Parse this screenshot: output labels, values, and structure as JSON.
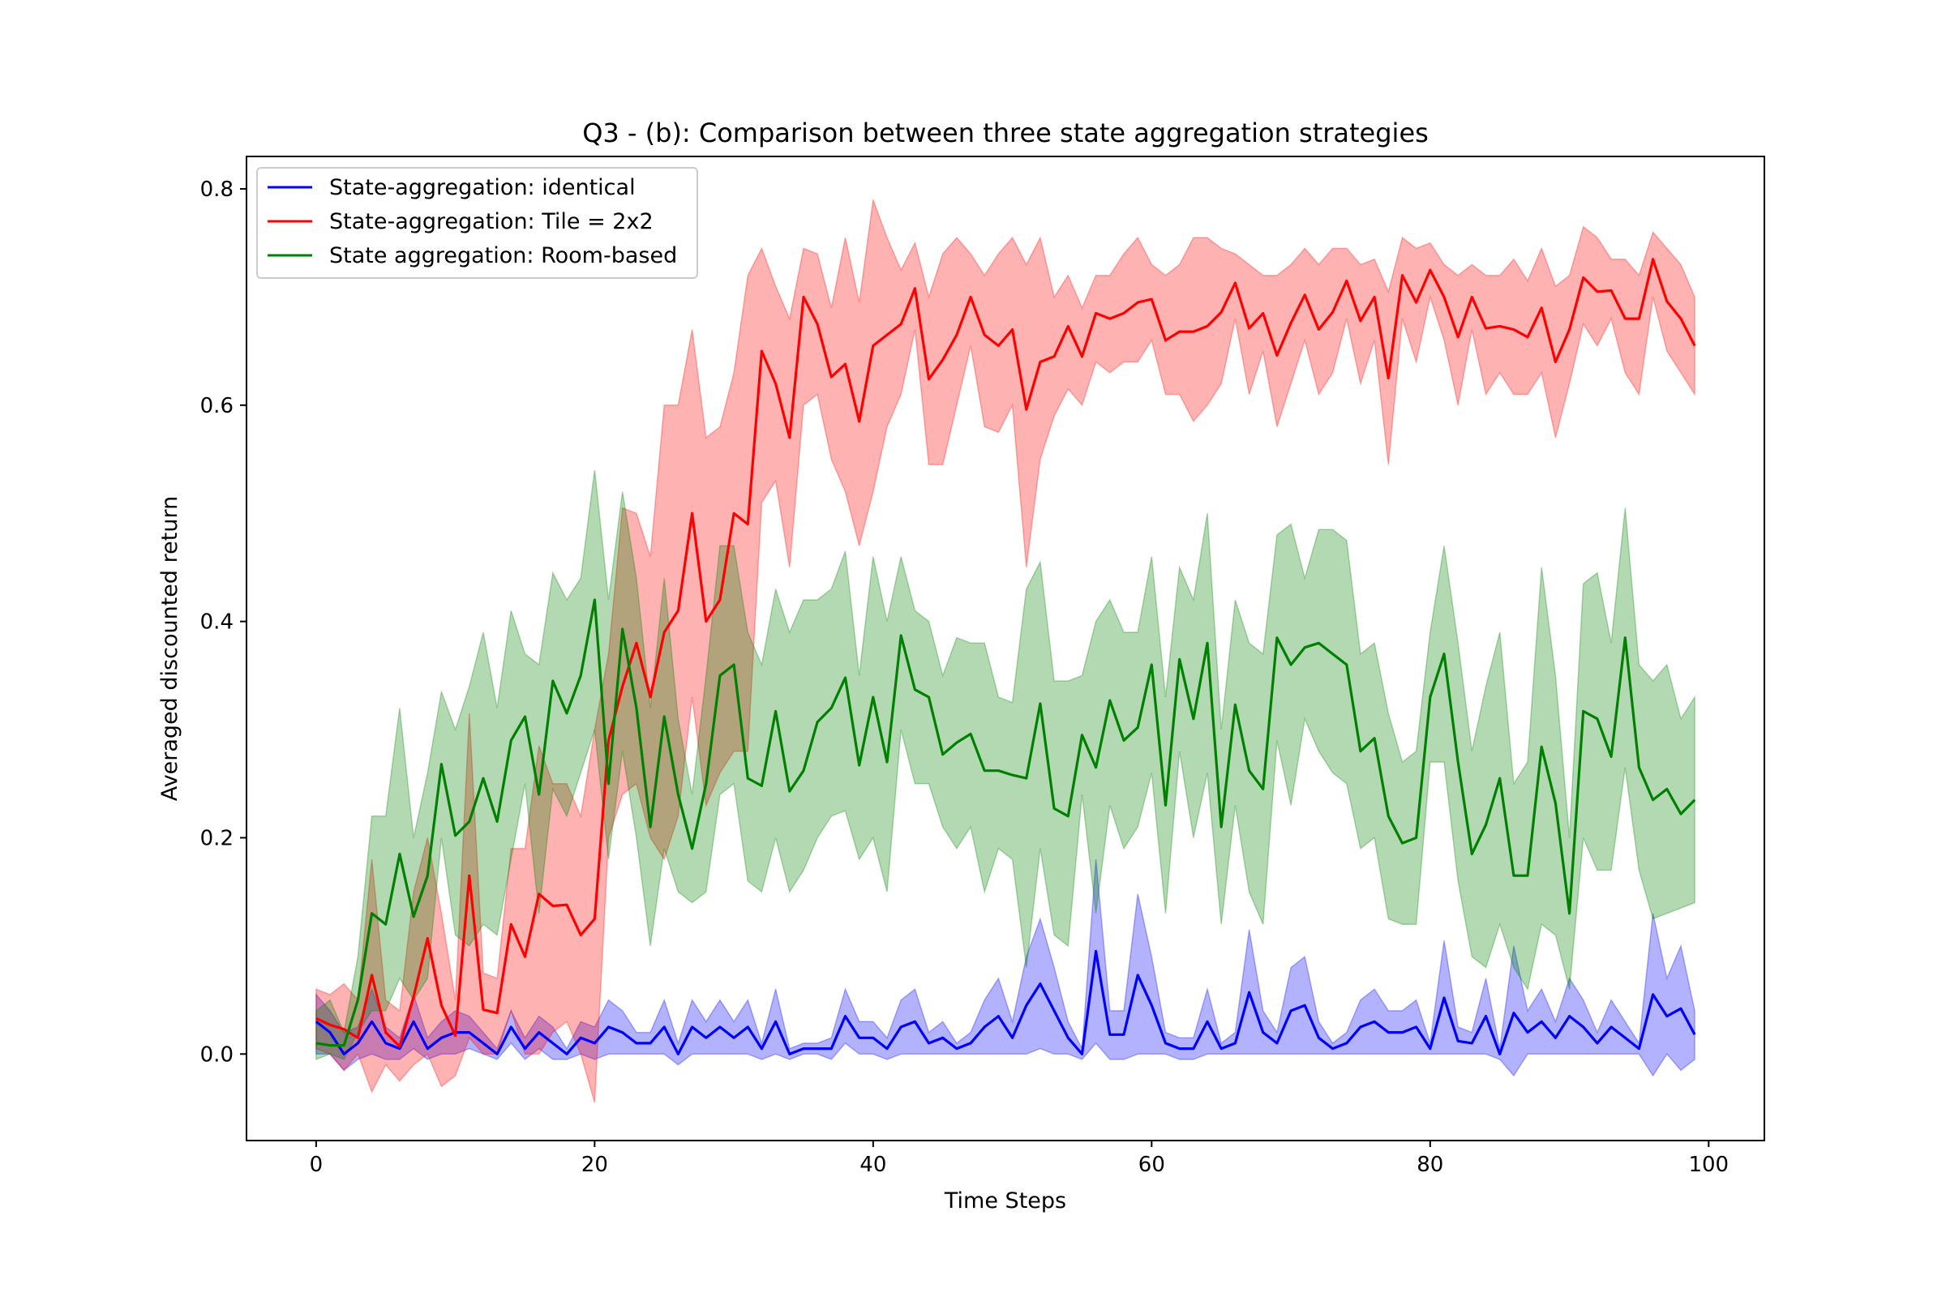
{
  "chart_data": {
    "type": "line",
    "title": "Q3 - (b): Comparison between three state aggregation strategies",
    "xlabel": "Time Steps",
    "ylabel": "Averaged discounted return",
    "xlim": [
      -5,
      104
    ],
    "ylim": [
      -0.08,
      0.83
    ],
    "xticks": [
      0,
      20,
      40,
      60,
      80,
      100
    ],
    "xtick_labels": [
      "0",
      "20",
      "40",
      "60",
      "80",
      "100"
    ],
    "yticks": [
      0.0,
      0.2,
      0.4,
      0.6,
      0.8
    ],
    "ytick_labels": [
      "0.0",
      "0.2",
      "0.4",
      "0.6",
      "0.8"
    ],
    "grid": false,
    "legend_position": "top-left",
    "series": [
      {
        "name": "State-aggregation: identical",
        "color": "#0000ff",
        "band_opacity": 0.3,
        "mean": [
          0.03,
          0.02,
          0.0,
          0.01,
          0.03,
          0.01,
          0.005,
          0.03,
          0.005,
          0.015,
          0.02,
          0.02,
          0.01,
          0.0,
          0.025,
          0.005,
          0.02,
          0.01,
          0.0,
          0.015,
          0.01,
          0.025,
          0.02,
          0.01,
          0.01,
          0.025,
          0.0,
          0.025,
          0.015,
          0.025,
          0.015,
          0.025,
          0.005,
          0.03,
          0.0,
          0.005,
          0.005,
          0.005,
          0.035,
          0.015,
          0.015,
          0.005,
          0.025,
          0.03,
          0.01,
          0.015,
          0.005,
          0.01,
          0.025,
          0.035,
          0.015,
          0.045,
          0.065,
          0.04,
          0.015,
          0.0,
          0.095,
          0.018,
          0.018,
          0.073,
          0.045,
          0.01,
          0.005,
          0.005,
          0.03,
          0.005,
          0.01,
          0.057,
          0.02,
          0.01,
          0.04,
          0.045,
          0.015,
          0.005,
          0.01,
          0.025,
          0.03,
          0.02,
          0.02,
          0.025,
          0.005,
          0.052,
          0.012,
          0.01,
          0.035,
          0.0,
          0.038,
          0.02,
          0.03,
          0.015,
          0.035,
          0.025,
          0.01,
          0.025,
          0.015,
          0.005,
          0.055,
          0.035,
          0.042,
          0.018
        ],
        "upper": [
          0.055,
          0.04,
          0.02,
          0.025,
          0.06,
          0.025,
          0.015,
          0.055,
          0.015,
          0.03,
          0.04,
          0.035,
          0.02,
          0.005,
          0.04,
          0.015,
          0.035,
          0.025,
          0.005,
          0.03,
          0.025,
          0.05,
          0.04,
          0.02,
          0.02,
          0.05,
          0.01,
          0.05,
          0.03,
          0.05,
          0.03,
          0.05,
          0.01,
          0.06,
          0.005,
          0.01,
          0.01,
          0.015,
          0.06,
          0.03,
          0.03,
          0.015,
          0.05,
          0.06,
          0.02,
          0.03,
          0.01,
          0.02,
          0.05,
          0.07,
          0.03,
          0.09,
          0.125,
          0.08,
          0.03,
          0.005,
          0.18,
          0.04,
          0.04,
          0.148,
          0.09,
          0.02,
          0.015,
          0.015,
          0.06,
          0.01,
          0.02,
          0.115,
          0.04,
          0.02,
          0.08,
          0.09,
          0.03,
          0.01,
          0.02,
          0.05,
          0.06,
          0.04,
          0.04,
          0.05,
          0.01,
          0.105,
          0.025,
          0.02,
          0.07,
          0.005,
          0.1,
          0.04,
          0.06,
          0.03,
          0.07,
          0.05,
          0.02,
          0.05,
          0.03,
          0.01,
          0.13,
          0.07,
          0.1,
          0.04
        ],
        "lower": [
          0.0,
          0.0,
          -0.015,
          -0.005,
          0.0,
          -0.005,
          -0.005,
          0.005,
          -0.005,
          0.0,
          0.0,
          0.005,
          0.0,
          -0.005,
          0.01,
          -0.005,
          0.005,
          -0.005,
          -0.005,
          0.0,
          -0.005,
          0.0,
          0.0,
          0.0,
          0.0,
          0.0,
          -0.01,
          0.0,
          0.0,
          0.0,
          0.0,
          0.0,
          -0.005,
          0.0,
          -0.005,
          0.0,
          0.0,
          -0.005,
          0.01,
          0.0,
          0.0,
          -0.005,
          0.0,
          0.0,
          0.0,
          0.0,
          0.0,
          0.0,
          0.0,
          0.0,
          0.0,
          0.0,
          0.005,
          0.0,
          0.0,
          -0.005,
          0.01,
          -0.005,
          -0.005,
          0.0,
          0.0,
          0.0,
          -0.005,
          -0.005,
          0.0,
          0.0,
          0.0,
          0.0,
          0.0,
          0.0,
          0.0,
          0.0,
          0.0,
          0.0,
          0.0,
          0.0,
          0.0,
          0.0,
          0.0,
          0.0,
          0.0,
          0.0,
          0.0,
          0.0,
          0.0,
          -0.005,
          -0.02,
          0.0,
          0.0,
          0.0,
          0.0,
          0.0,
          0.0,
          0.0,
          0.0,
          0.0,
          -0.02,
          0.0,
          -0.015,
          -0.005
        ]
      },
      {
        "name": "State-aggregation: Tile = 2x2",
        "color": "#ff0000",
        "band_opacity": 0.3,
        "mean": [
          0.033,
          0.027,
          0.023,
          0.015,
          0.073,
          0.02,
          0.007,
          0.053,
          0.107,
          0.045,
          0.017,
          0.165,
          0.041,
          0.038,
          0.12,
          0.09,
          0.148,
          0.137,
          0.138,
          0.11,
          0.125,
          0.29,
          0.34,
          0.38,
          0.33,
          0.39,
          0.41,
          0.5,
          0.4,
          0.42,
          0.5,
          0.49,
          0.65,
          0.62,
          0.57,
          0.7,
          0.675,
          0.626,
          0.638,
          0.585,
          0.655,
          0.665,
          0.675,
          0.708,
          0.624,
          0.642,
          0.665,
          0.7,
          0.665,
          0.655,
          0.67,
          0.596,
          0.64,
          0.645,
          0.673,
          0.645,
          0.685,
          0.68,
          0.685,
          0.695,
          0.698,
          0.66,
          0.668,
          0.668,
          0.673,
          0.686,
          0.713,
          0.671,
          0.685,
          0.646,
          0.676,
          0.702,
          0.67,
          0.686,
          0.715,
          0.678,
          0.7,
          0.625,
          0.72,
          0.695,
          0.725,
          0.7,
          0.663,
          0.7,
          0.671,
          0.673,
          0.67,
          0.663,
          0.69,
          0.64,
          0.67,
          0.718,
          0.705,
          0.706,
          0.68,
          0.68,
          0.735,
          0.696,
          0.68,
          0.655
        ],
        "upper": [
          0.06,
          0.055,
          0.065,
          0.05,
          0.18,
          0.05,
          0.04,
          0.15,
          0.2,
          0.13,
          0.05,
          0.315,
          0.075,
          0.07,
          0.19,
          0.19,
          0.285,
          0.25,
          0.25,
          0.22,
          0.3,
          0.37,
          0.505,
          0.5,
          0.46,
          0.6,
          0.6,
          0.67,
          0.57,
          0.58,
          0.63,
          0.72,
          0.745,
          0.71,
          0.68,
          0.745,
          0.74,
          0.69,
          0.755,
          0.695,
          0.79,
          0.755,
          0.725,
          0.75,
          0.7,
          0.74,
          0.755,
          0.74,
          0.72,
          0.74,
          0.755,
          0.73,
          0.755,
          0.7,
          0.72,
          0.69,
          0.72,
          0.72,
          0.74,
          0.755,
          0.73,
          0.72,
          0.73,
          0.755,
          0.755,
          0.745,
          0.74,
          0.73,
          0.72,
          0.72,
          0.73,
          0.745,
          0.73,
          0.745,
          0.745,
          0.73,
          0.735,
          0.705,
          0.755,
          0.745,
          0.75,
          0.73,
          0.72,
          0.73,
          0.72,
          0.72,
          0.735,
          0.715,
          0.745,
          0.71,
          0.72,
          0.765,
          0.755,
          0.735,
          0.735,
          0.72,
          0.76,
          0.745,
          0.73,
          0.7
        ],
        "lower": [
          0.005,
          0.0,
          -0.015,
          0.0,
          -0.035,
          -0.01,
          -0.025,
          -0.01,
          0.0,
          -0.03,
          -0.02,
          0.015,
          0.0,
          0.0,
          0.04,
          0.0,
          0.0,
          0.02,
          0.03,
          0.0,
          -0.045,
          0.2,
          0.24,
          0.25,
          0.2,
          0.18,
          0.22,
          0.33,
          0.23,
          0.26,
          0.28,
          0.28,
          0.51,
          0.53,
          0.45,
          0.6,
          0.61,
          0.55,
          0.52,
          0.47,
          0.52,
          0.58,
          0.61,
          0.67,
          0.545,
          0.545,
          0.6,
          0.655,
          0.58,
          0.575,
          0.6,
          0.45,
          0.55,
          0.59,
          0.615,
          0.6,
          0.64,
          0.63,
          0.64,
          0.64,
          0.66,
          0.61,
          0.61,
          0.585,
          0.6,
          0.62,
          0.68,
          0.61,
          0.65,
          0.58,
          0.62,
          0.66,
          0.61,
          0.63,
          0.68,
          0.62,
          0.66,
          0.545,
          0.68,
          0.64,
          0.7,
          0.66,
          0.6,
          0.67,
          0.61,
          0.63,
          0.61,
          0.61,
          0.63,
          0.57,
          0.62,
          0.675,
          0.655,
          0.68,
          0.63,
          0.61,
          0.7,
          0.65,
          0.63,
          0.61
        ]
      },
      {
        "name": "State aggregation: Room-based",
        "color": "#008000",
        "band_opacity": 0.3,
        "mean": [
          0.01,
          0.008,
          0.008,
          0.05,
          0.13,
          0.12,
          0.185,
          0.127,
          0.165,
          0.268,
          0.202,
          0.215,
          0.255,
          0.215,
          0.29,
          0.312,
          0.24,
          0.345,
          0.315,
          0.35,
          0.42,
          0.25,
          0.393,
          0.32,
          0.21,
          0.312,
          0.24,
          0.19,
          0.25,
          0.35,
          0.36,
          0.255,
          0.248,
          0.317,
          0.243,
          0.262,
          0.307,
          0.32,
          0.348,
          0.267,
          0.33,
          0.27,
          0.387,
          0.337,
          0.33,
          0.277,
          0.288,
          0.296,
          0.262,
          0.262,
          0.258,
          0.255,
          0.324,
          0.227,
          0.22,
          0.295,
          0.265,
          0.327,
          0.29,
          0.302,
          0.36,
          0.23,
          0.365,
          0.31,
          0.38,
          0.21,
          0.323,
          0.262,
          0.245,
          0.385,
          0.36,
          0.376,
          0.38,
          0.37,
          0.36,
          0.28,
          0.292,
          0.22,
          0.195,
          0.2,
          0.33,
          0.37,
          0.27,
          0.185,
          0.212,
          0.255,
          0.165,
          0.165,
          0.284,
          0.232,
          0.13,
          0.317,
          0.31,
          0.275,
          0.385,
          0.265,
          0.235,
          0.245,
          0.222,
          0.235
        ],
        "upper": [
          0.04,
          0.05,
          0.02,
          0.09,
          0.22,
          0.22,
          0.32,
          0.2,
          0.26,
          0.335,
          0.3,
          0.34,
          0.39,
          0.32,
          0.41,
          0.37,
          0.36,
          0.445,
          0.42,
          0.44,
          0.54,
          0.42,
          0.52,
          0.44,
          0.32,
          0.44,
          0.31,
          0.24,
          0.35,
          0.47,
          0.47,
          0.39,
          0.36,
          0.43,
          0.39,
          0.42,
          0.42,
          0.43,
          0.465,
          0.35,
          0.46,
          0.4,
          0.46,
          0.41,
          0.4,
          0.35,
          0.385,
          0.38,
          0.38,
          0.33,
          0.325,
          0.43,
          0.455,
          0.345,
          0.345,
          0.35,
          0.4,
          0.42,
          0.39,
          0.39,
          0.46,
          0.33,
          0.45,
          0.42,
          0.5,
          0.3,
          0.42,
          0.38,
          0.37,
          0.48,
          0.49,
          0.44,
          0.485,
          0.485,
          0.475,
          0.37,
          0.38,
          0.315,
          0.27,
          0.28,
          0.39,
          0.47,
          0.38,
          0.28,
          0.34,
          0.39,
          0.25,
          0.27,
          0.45,
          0.35,
          0.2,
          0.435,
          0.445,
          0.38,
          0.505,
          0.36,
          0.345,
          0.36,
          0.31,
          0.33
        ],
        "lower": [
          -0.005,
          0.0,
          -0.005,
          0.02,
          0.04,
          0.04,
          0.07,
          0.05,
          0.07,
          0.2,
          0.11,
          0.1,
          0.12,
          0.11,
          0.18,
          0.25,
          0.13,
          0.245,
          0.22,
          0.26,
          0.3,
          0.18,
          0.28,
          0.2,
          0.1,
          0.19,
          0.15,
          0.14,
          0.15,
          0.24,
          0.25,
          0.16,
          0.15,
          0.2,
          0.15,
          0.17,
          0.2,
          0.22,
          0.225,
          0.18,
          0.2,
          0.15,
          0.3,
          0.25,
          0.25,
          0.21,
          0.19,
          0.21,
          0.15,
          0.19,
          0.18,
          0.08,
          0.19,
          0.11,
          0.1,
          0.24,
          0.13,
          0.23,
          0.19,
          0.21,
          0.26,
          0.13,
          0.28,
          0.2,
          0.26,
          0.12,
          0.23,
          0.15,
          0.12,
          0.29,
          0.23,
          0.31,
          0.28,
          0.26,
          0.25,
          0.19,
          0.2,
          0.125,
          0.12,
          0.12,
          0.27,
          0.27,
          0.16,
          0.09,
          0.08,
          0.12,
          0.08,
          0.06,
          0.12,
          0.11,
          0.06,
          0.2,
          0.17,
          0.17,
          0.265,
          0.17,
          0.125,
          0.13,
          0.135,
          0.14
        ]
      }
    ]
  }
}
